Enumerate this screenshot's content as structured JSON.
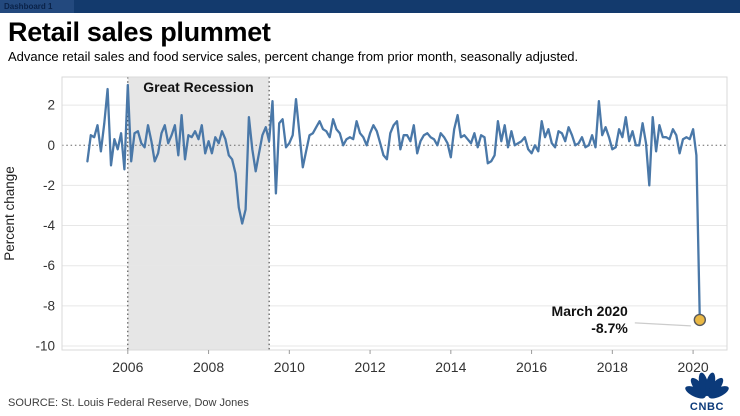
{
  "window": {
    "tab_label": "Dashboard 1"
  },
  "header": {
    "title": "Retail sales plummet",
    "subtitle": "Advance retail sales and food service sales, percent change from prior month, seasonally adjusted."
  },
  "footer": {
    "source": "SOURCE: St. Louis Federal Reserve, Dow Jones",
    "logo_text": "CNBC"
  },
  "colors": {
    "line": "#4a78a8",
    "recession_band": "#e6e6e6",
    "marker_fill": "#eab844",
    "marker_stroke": "#58595b",
    "grid": "#e7e7e7",
    "axis_border": "#d9d9d9",
    "zero_line": "#666666",
    "band_edge": "#333333",
    "tick_label": "#333333",
    "annotation_text": "#111111",
    "connector": "#cccccc",
    "topbar": "#133a6d",
    "logo_navy": "#0b3a7a"
  },
  "chart_data": {
    "type": "line",
    "ylabel": "Percent change",
    "x_ticks": [
      2006,
      2008,
      2010,
      2012,
      2014,
      2016,
      2018,
      2020
    ],
    "y_ticks": [
      2,
      0,
      -2,
      -4,
      -6,
      -8,
      -10
    ],
    "x_range": [
      2004.37,
      2020.84
    ],
    "y_range": [
      3.4,
      -10.2
    ],
    "grid": "horizontal-light",
    "zero_line_style": "dotted",
    "recession_band": {
      "label": "Great Recession",
      "x_start": 2006.0,
      "x_end": 2009.5
    },
    "annotation": {
      "line1": "March 2020",
      "line2": "-8.7%",
      "x": 2020.167,
      "y": -8.7
    },
    "series": [
      {
        "name": "Percent change",
        "frequency": "monthly",
        "start_year": 2005,
        "start_month": 1,
        "end_label": "2020-03",
        "values": [
          -0.8,
          0.5,
          0.4,
          1.0,
          -0.3,
          1.1,
          2.8,
          -1.0,
          0.3,
          -0.2,
          0.6,
          -1.2,
          3.0,
          -0.8,
          0.6,
          0.7,
          0.1,
          -0.1,
          1.0,
          0.2,
          -0.8,
          -0.4,
          0.6,
          1.0,
          0.1,
          0.5,
          1.0,
          -0.5,
          1.5,
          -0.7,
          0.5,
          0.4,
          0.7,
          0.3,
          1.0,
          -0.4,
          0.2,
          -0.4,
          0.4,
          0.1,
          0.7,
          0.3,
          -0.5,
          -0.7,
          -1.4,
          -3.1,
          -3.9,
          -3.2,
          1.4,
          -0.2,
          -1.3,
          -0.4,
          0.5,
          0.9,
          0.2,
          2.2,
          -2.4,
          1.1,
          1.3,
          -0.1,
          0.1,
          0.5,
          2.3,
          0.6,
          -1.1,
          -0.3,
          0.5,
          0.6,
          0.9,
          1.2,
          0.8,
          0.7,
          0.4,
          1.3,
          0.8,
          0.6,
          0.0,
          0.3,
          0.4,
          0.3,
          1.2,
          0.6,
          0.4,
          0.0,
          0.6,
          1.0,
          0.7,
          0.1,
          -0.5,
          -0.7,
          0.6,
          1.0,
          1.2,
          -0.2,
          0.5,
          0.5,
          0.2,
          1.0,
          -0.4,
          0.2,
          0.5,
          0.6,
          0.4,
          0.3,
          0.0,
          0.6,
          0.4,
          0.1,
          -0.6,
          0.8,
          1.5,
          0.4,
          0.5,
          0.3,
          0.1,
          0.6,
          -0.1,
          0.5,
          0.4,
          -0.9,
          -0.8,
          -0.5,
          1.2,
          0.2,
          1.0,
          -0.1,
          0.7,
          0.0,
          0.1,
          0.2,
          0.4,
          -0.2,
          -0.4,
          0.0,
          -0.3,
          1.2,
          0.4,
          0.8,
          0.1,
          -0.1,
          0.7,
          0.6,
          0.2,
          0.9,
          0.5,
          0.0,
          0.1,
          0.4,
          -0.1,
          0.0,
          0.5,
          -0.1,
          2.2,
          0.5,
          0.9,
          0.4,
          -0.2,
          -0.1,
          0.8,
          0.4,
          1.4,
          0.2,
          0.7,
          0.0,
          0.0,
          1.1,
          0.1,
          -2.0,
          1.4,
          -0.3,
          1.0,
          0.4,
          0.4,
          0.3,
          0.8,
          0.5,
          -0.4,
          0.3,
          0.4,
          0.3,
          0.8,
          -0.5,
          -8.7
        ]
      }
    ]
  }
}
